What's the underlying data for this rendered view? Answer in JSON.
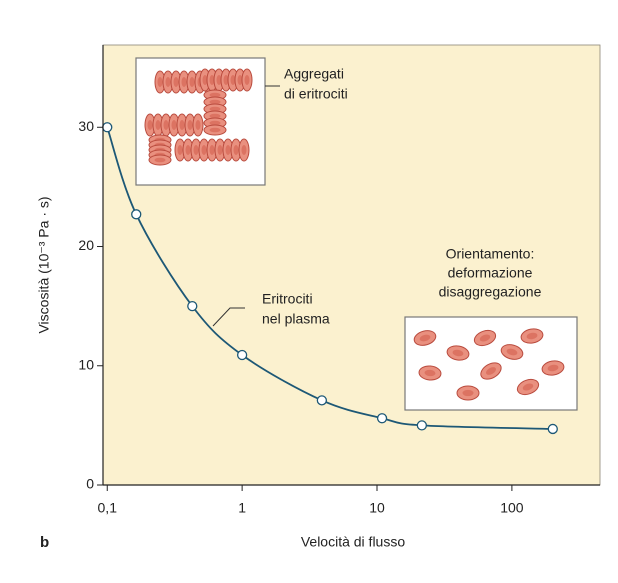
{
  "chart_data": {
    "type": "line",
    "xlabel": "Velocità di flusso",
    "ylabel": "Viscosità (10⁻³ Pa · s)",
    "panel_label": "b",
    "x_scale": "log",
    "xlim": [
      0.093,
      450
    ],
    "ylim": [
      0,
      36.9
    ],
    "xticks": [
      {
        "value": 0.1,
        "label": "0,1"
      },
      1,
      10,
      100
    ],
    "yticks": [
      0,
      10,
      20,
      30
    ],
    "series": [
      {
        "color": "#1d5876",
        "x": [
          0.1,
          0.164,
          0.427,
          1,
          3.9,
          10.9,
          21.5,
          201
        ],
        "values": [
          30,
          22.7,
          15.0,
          10.9,
          7.1,
          5.6,
          5.0,
          4.7
        ]
      }
    ],
    "annotations": [
      {
        "lines": [
          "Aggregati",
          "di eritrociti"
        ]
      },
      {
        "lines": [
          "Eritrociti",
          "nel plasma"
        ]
      },
      {
        "lines": [
          "Orientamento:",
          "deformazione",
          "disaggregazione"
        ]
      }
    ]
  }
}
